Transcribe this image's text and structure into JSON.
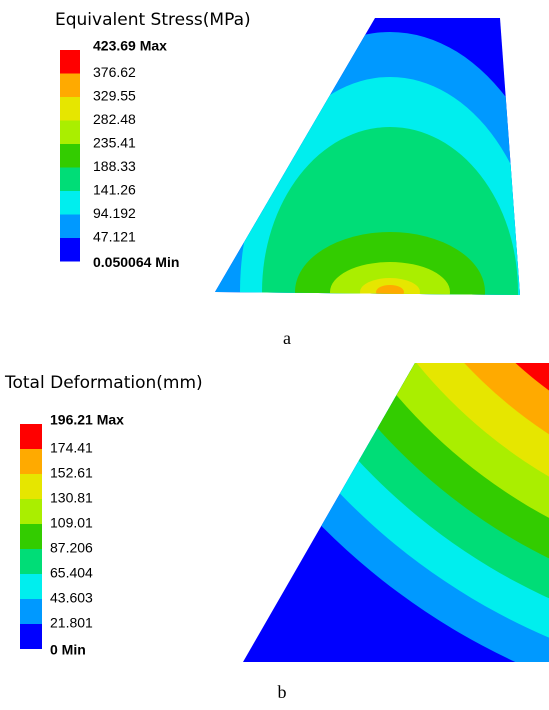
{
  "panels": [
    {
      "title": "Equivalent Stress(MPa)",
      "labels": [
        "423.69 Max",
        "376.62",
        "329.55",
        "282.48",
        "235.41",
        "188.33",
        "141.26",
        "94.192",
        "47.121",
        "0.050064 Min"
      ],
      "colors": [
        "#ff0000",
        "#ffaa00",
        "#e6e600",
        "#aaee00",
        "#33cc00",
        "#00dd77",
        "#00eeee",
        "#0099ff",
        "#0000ff"
      ],
      "caption": "a"
    },
    {
      "title": "Total Deformation(mm)",
      "labels": [
        "196.21 Max",
        "174.41",
        "152.61",
        "130.81",
        "109.01",
        "87.206",
        "65.404",
        "43.603",
        "21.801",
        "0 Min"
      ],
      "colors": [
        "#ff0000",
        "#ffaa00",
        "#e6e600",
        "#aaee00",
        "#33cc00",
        "#00dd77",
        "#00eeee",
        "#0099ff",
        "#0000ff"
      ],
      "caption": "b"
    }
  ]
}
